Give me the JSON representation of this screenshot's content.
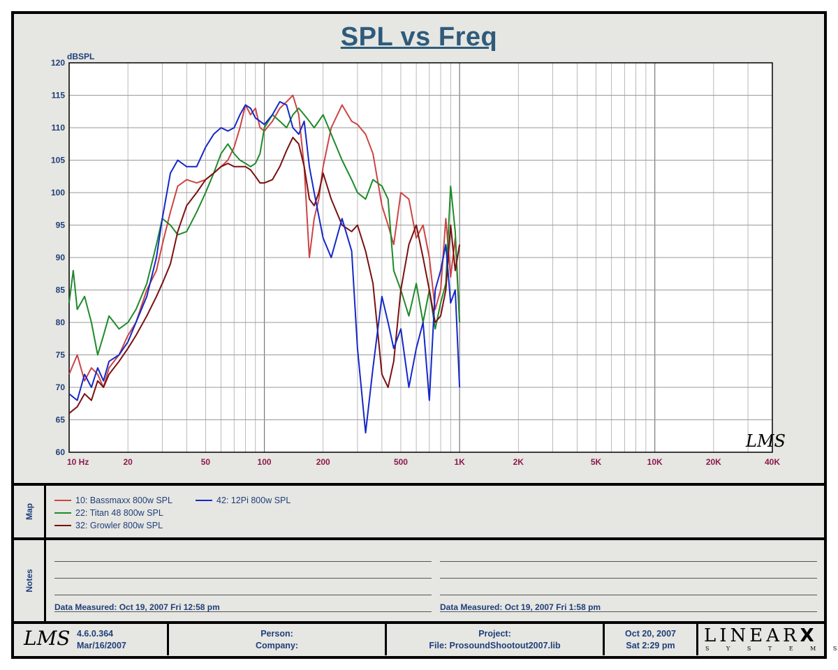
{
  "chart_data": {
    "type": "line",
    "title": "SPL vs Freq",
    "ylabel": "dBSPL",
    "xscale": "log",
    "xlim": [
      10,
      40000
    ],
    "ylim": [
      60,
      120
    ],
    "yticks": [
      "60",
      "65",
      "70",
      "75",
      "80",
      "85",
      "90",
      "95",
      "100",
      "105",
      "110",
      "115",
      "120"
    ],
    "xticks": [
      {
        "v": 10,
        "label": "10  Hz"
      },
      {
        "v": 20,
        "label": "20"
      },
      {
        "v": 50,
        "label": "50"
      },
      {
        "v": 100,
        "label": "100"
      },
      {
        "v": 200,
        "label": "200"
      },
      {
        "v": 500,
        "label": "500"
      },
      {
        "v": 1000,
        "label": "1K"
      },
      {
        "v": 2000,
        "label": "2K"
      },
      {
        "v": 5000,
        "label": "5K"
      },
      {
        "v": 10000,
        "label": "10K"
      },
      {
        "v": 20000,
        "label": "20K"
      },
      {
        "v": 40000,
        "label": "40K"
      }
    ],
    "grid": true,
    "series": [
      {
        "name": "10: Bassmaxx 800w SPL",
        "color": "#cc4444",
        "x": [
          10,
          11,
          12,
          13,
          14,
          15,
          16,
          18,
          20,
          22,
          25,
          28,
          30,
          33,
          36,
          40,
          45,
          50,
          55,
          60,
          65,
          70,
          75,
          80,
          85,
          90,
          95,
          100,
          110,
          120,
          130,
          140,
          150,
          160,
          170,
          180,
          190,
          200,
          220,
          250,
          280,
          300,
          330,
          360,
          400,
          430,
          460,
          500,
          550,
          600,
          650,
          700,
          750,
          800,
          850,
          900,
          950,
          1000
        ],
        "y": [
          72,
          75,
          71,
          73,
          72,
          70,
          73,
          75,
          78,
          80,
          85,
          88,
          92,
          97,
          101,
          102,
          101.5,
          102,
          103,
          104,
          105,
          107,
          110,
          113.5,
          112,
          113,
          110,
          109.5,
          111,
          113,
          114,
          115,
          112,
          104,
          90,
          96,
          99,
          104,
          110,
          113.5,
          111,
          110.5,
          109,
          106,
          98,
          95,
          92,
          100,
          99,
          93,
          95,
          90,
          82,
          85,
          96,
          87,
          93,
          80
        ]
      },
      {
        "name": "22: Titan 48 800w SPL",
        "color": "#1e8a2a",
        "x": [
          10,
          10.5,
          11,
          12,
          13,
          14,
          15,
          16,
          17,
          18,
          20,
          22,
          25,
          28,
          30,
          33,
          36,
          40,
          45,
          50,
          55,
          60,
          65,
          70,
          75,
          80,
          85,
          90,
          95,
          100,
          110,
          120,
          130,
          140,
          150,
          160,
          170,
          180,
          200,
          220,
          250,
          280,
          300,
          330,
          360,
          400,
          430,
          460,
          500,
          550,
          600,
          650,
          700,
          750,
          800,
          850,
          900,
          950,
          1000
        ],
        "y": [
          83,
          88,
          82,
          84,
          80,
          75,
          78,
          81,
          80,
          79,
          80,
          82,
          86,
          92,
          96,
          95,
          93.5,
          94,
          97,
          100,
          103,
          106,
          107.5,
          106,
          105,
          104.5,
          104,
          104.5,
          106,
          110,
          112,
          111,
          110,
          112,
          113,
          112,
          111,
          110,
          112,
          109,
          105,
          102,
          100,
          99,
          102,
          101,
          99,
          88,
          85,
          81,
          86,
          80,
          85,
          79,
          83,
          86,
          101,
          94,
          80
        ]
      },
      {
        "name": "32: Growler 800w SPL",
        "color": "#7a1010",
        "x": [
          10,
          11,
          12,
          13,
          14,
          15,
          16,
          18,
          20,
          22,
          25,
          28,
          30,
          33,
          36,
          40,
          45,
          50,
          55,
          60,
          65,
          70,
          75,
          80,
          85,
          90,
          95,
          100,
          110,
          120,
          130,
          140,
          150,
          160,
          170,
          180,
          190,
          200,
          220,
          250,
          280,
          300,
          330,
          360,
          400,
          430,
          460,
          500,
          550,
          600,
          650,
          700,
          750,
          800,
          850,
          900,
          950,
          1000
        ],
        "y": [
          66,
          67,
          69,
          68,
          71,
          70,
          72,
          74,
          76,
          78,
          81,
          84,
          86,
          89,
          94,
          98,
          100,
          102,
          103,
          104,
          104.5,
          104,
          104,
          104,
          103.5,
          102.5,
          101.5,
          101.5,
          102,
          104,
          106.5,
          108.5,
          107.5,
          104,
          99,
          98,
          100,
          103,
          99,
          95,
          94,
          95,
          91,
          86,
          72,
          70,
          74,
          85,
          92,
          95,
          90,
          85,
          80,
          81,
          85,
          95,
          88,
          92
        ]
      },
      {
        "name": "42: 12Pi 800w SPL",
        "color": "#1428c8",
        "x": [
          10,
          11,
          12,
          13,
          14,
          15,
          16,
          18,
          20,
          22,
          25,
          28,
          30,
          33,
          36,
          40,
          45,
          50,
          55,
          60,
          65,
          70,
          75,
          80,
          85,
          90,
          95,
          100,
          110,
          120,
          130,
          140,
          150,
          160,
          170,
          180,
          200,
          220,
          250,
          280,
          300,
          330,
          360,
          400,
          430,
          460,
          500,
          550,
          600,
          650,
          700,
          750,
          800,
          850,
          900,
          950,
          1000
        ],
        "y": [
          69,
          68,
          72,
          70,
          73,
          71,
          74,
          75,
          77,
          80,
          84,
          90,
          96,
          103,
          105,
          104,
          104,
          107,
          109,
          110,
          109.5,
          110,
          112,
          113.5,
          113,
          111.5,
          111,
          110.5,
          112,
          114,
          113.5,
          110,
          109,
          111,
          104,
          100,
          93,
          90,
          96,
          91,
          76,
          63,
          73,
          84,
          80,
          76,
          79,
          70,
          76,
          80,
          68,
          85,
          88,
          92,
          83,
          85,
          70
        ]
      }
    ]
  },
  "legend_section_label": "Map",
  "notes_section_label": "Notes",
  "notes": {
    "left_measured": "Data Measured: Oct 19, 2007  Fri 12:58 pm",
    "right_measured": "Data Measured: Oct 19, 2007  Fri  1:58 pm"
  },
  "footer": {
    "logo": "LMS",
    "version": "4.6.0.364",
    "version_date": "Mar/16/2007",
    "person_label": "Person:",
    "company_label": "Company:",
    "project_label": "Project:",
    "file_label": "File: ProsoundShootout2007.lib",
    "date": "Oct 20, 2007",
    "day_time": "Sat  2:29 pm",
    "brand": "LINEAR",
    "brand_x": "X",
    "brand_sub": "S Y S T E M S"
  },
  "watermark": "LMS"
}
